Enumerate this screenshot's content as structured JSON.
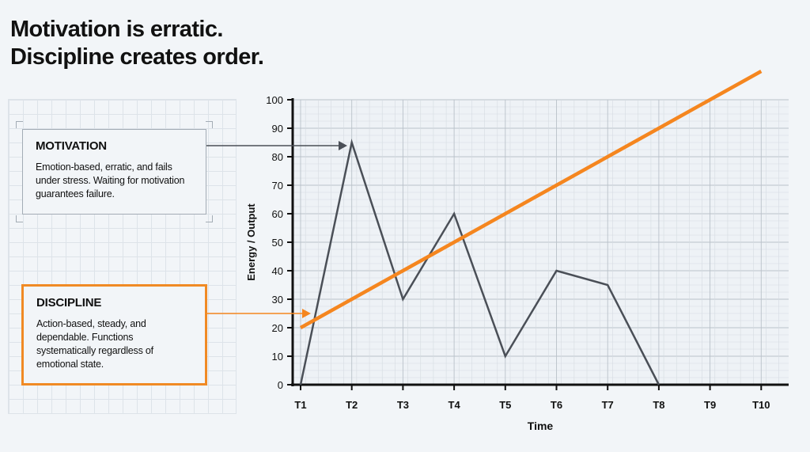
{
  "title_lines": [
    "Motivation is erratic.",
    "Discipline creates order."
  ],
  "motivation": {
    "heading": "MOTIVATION",
    "text": "Emotion-based, erratic, and fails under stress. Waiting for motivation guarantees failure."
  },
  "discipline": {
    "heading": "DISCIPLINE",
    "text": "Action-based, steady, and dependable. Functions systematically regardless of emotional state."
  },
  "colors": {
    "motivation": "#4a4f57",
    "discipline": "#f5861f",
    "axis": "#111111"
  },
  "chart_data": {
    "type": "line",
    "xlabel": "Time",
    "ylabel": "Energy / Output",
    "categories": [
      "T1",
      "T2",
      "T3",
      "T4",
      "T5",
      "T6",
      "T7",
      "T8",
      "T9",
      "T10"
    ],
    "ylim": [
      0,
      100
    ],
    "yticks": [
      0,
      10,
      20,
      30,
      40,
      50,
      60,
      70,
      80,
      90,
      100
    ],
    "grid": true,
    "series": [
      {
        "key": "motivation",
        "values": [
          0,
          85,
          30,
          60,
          10,
          40,
          35,
          0,
          null,
          null
        ]
      },
      {
        "key": "discipline",
        "values": [
          20,
          30,
          40,
          50,
          60,
          70,
          80,
          90,
          100,
          110
        ]
      }
    ]
  }
}
